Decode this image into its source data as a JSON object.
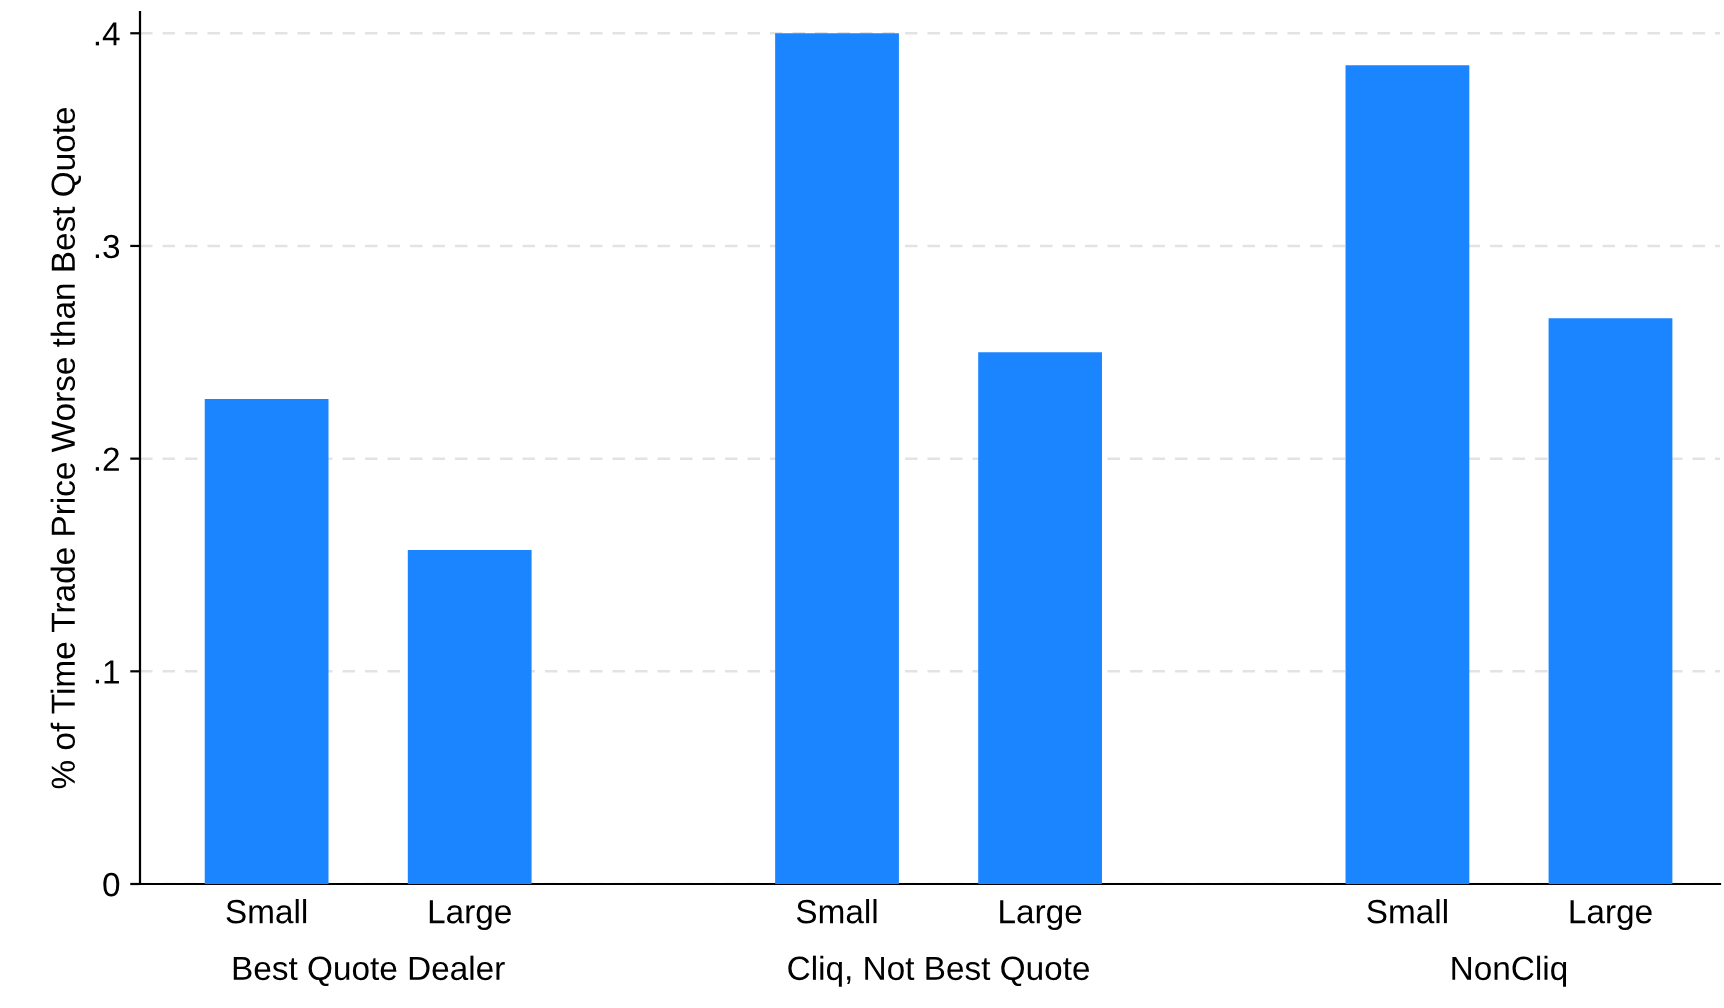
{
  "chart_data": {
    "type": "bar",
    "ylabel": "% of Time Trade Price Worse than Best Quote",
    "categories": [
      "Best Quote Dealer",
      "Cliq, Not Best Quote",
      "NonCliq"
    ],
    "series": [
      {
        "name": "Small",
        "color": "#1a85ff",
        "values": [
          0.228,
          0.4,
          0.385
        ]
      },
      {
        "name": "Large",
        "color": "#1a85ff",
        "values": [
          0.157,
          0.25,
          0.266
        ]
      }
    ],
    "ylim": [
      0,
      0.41
    ],
    "yticks": [
      0,
      {
        "value": 0.1,
        "label": ".1"
      },
      {
        "value": 0.2,
        "label": ".2"
      },
      {
        "value": 0.3,
        "label": ".3"
      },
      {
        "value": 0.4,
        "label": ".4"
      }
    ],
    "grid": "y",
    "legend": false
  }
}
